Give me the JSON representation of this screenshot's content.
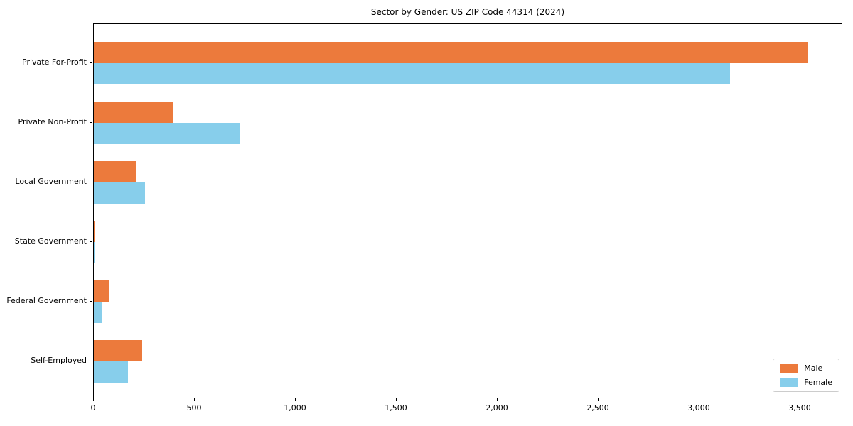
{
  "chart_data": {
    "type": "bar",
    "orientation": "horizontal",
    "title": "Sector by Gender: US ZIP Code 44314 (2024)",
    "categories": [
      "Private For-Profit",
      "Private Non-Profit",
      "Local Government",
      "State Government",
      "Federal Government",
      "Self-Employed"
    ],
    "series": [
      {
        "name": "Male",
        "color": "#ec7a3c",
        "values": [
          3534,
          391,
          209,
          7,
          77,
          239
        ]
      },
      {
        "name": "Female",
        "color": "#87ceeb",
        "values": [
          3150,
          722,
          253,
          5,
          39,
          169
        ]
      }
    ],
    "xlabel": "",
    "ylabel": "",
    "xlim": [
      0,
      3711
    ],
    "xticks": [
      0,
      500,
      1000,
      1500,
      2000,
      2500,
      3000,
      3500
    ],
    "xtick_labels": [
      "0",
      "500",
      "1,000",
      "1,500",
      "2,000",
      "2,500",
      "3,000",
      "3,500"
    ],
    "grid": false,
    "legend_position": "lower right",
    "background_color": "#ffffff",
    "spine_color": "#000000"
  }
}
